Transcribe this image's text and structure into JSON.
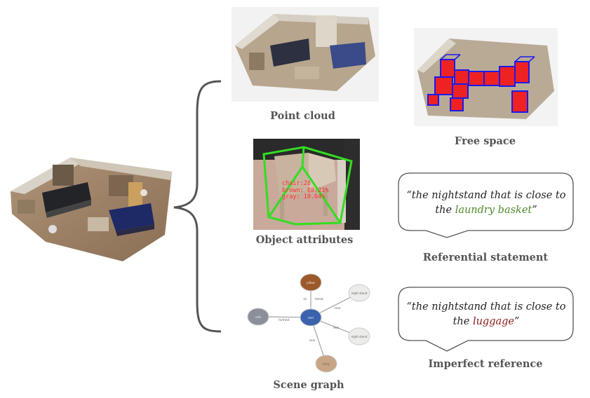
{
  "captions": {
    "point_cloud": "Point cloud",
    "free_space": "Free space",
    "object_attributes": "Object attributes",
    "referential_statement": "Referential statement",
    "scene_graph": "Scene graph",
    "imperfect_reference": "Imperfect reference"
  },
  "attribute_overlay": {
    "line1": "chair:28",
    "line2": "brown: 88.21%",
    "line3": "gray: 10.64%"
  },
  "referential": {
    "line1": "“the nightstand that is close to",
    "line2_prefix": "the ",
    "line2_highlight": "laundry basket",
    "line2_suffix": "”"
  },
  "imperfect": {
    "line1": "“the nightstand that is close to",
    "line2_prefix": "the ",
    "line2_highlight": "luggage",
    "line2_suffix": "”"
  },
  "scene_graph": {
    "nodes": {
      "top": "pillow",
      "center": "bed",
      "left": "sofa",
      "ur": "night stand",
      "lr": "night stand",
      "bottom": "lamp"
    },
    "edges": {
      "on": "on",
      "below": "below",
      "farthest": "farthest",
      "near_ur": "near",
      "near_lr": "near",
      "near_bottom": "near"
    }
  },
  "colors": {
    "caption": "#555555",
    "green_highlight": "#4f8a2a",
    "red_highlight": "#8b1a1a",
    "bbox_green": "#33dd22",
    "free_space_red": "#ee2222",
    "free_space_blue": "#1a1aee",
    "node_pillow": "#9c5a2a",
    "node_bed": "#3a62ad",
    "node_sofa": "#8a8f99",
    "node_nightstand": "#ececea",
    "node_lamp": "#c8a585"
  }
}
